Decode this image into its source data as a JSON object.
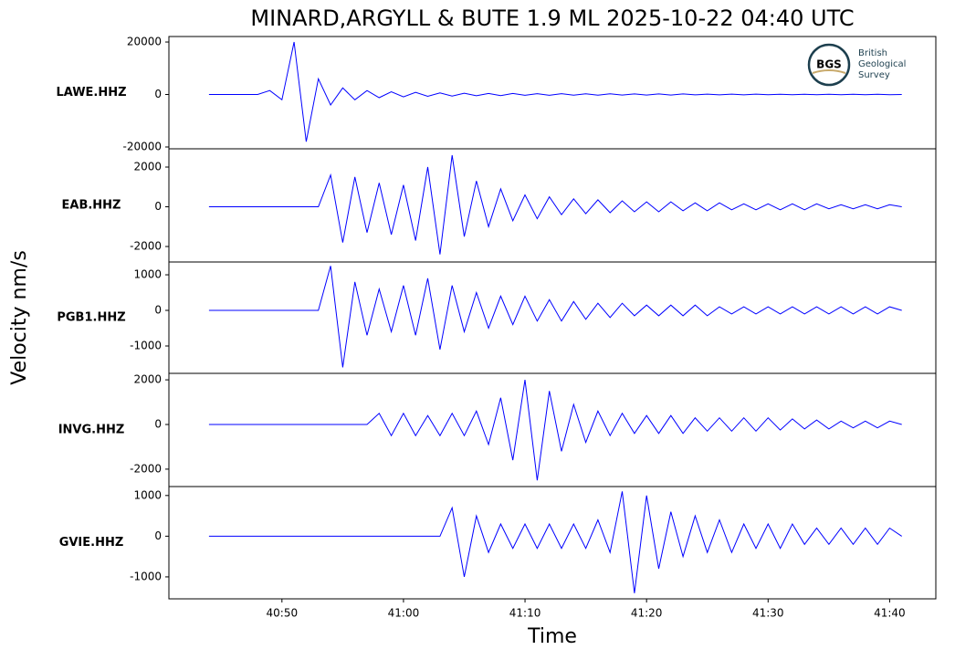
{
  "figure": {
    "title": "MINARD,ARGYLL & BUTE 1.9 ML   2025-10-22 04:40 UTC",
    "xlabel": "Time",
    "ylabel": "Velocity nm/s"
  },
  "logo": {
    "mark": "BGS",
    "lines": [
      "British",
      "Geological",
      "Survey"
    ]
  },
  "chart_data": [
    {
      "type": "line",
      "ylabel": "LAWE.HHZ",
      "color": "#0000ff",
      "xlim": [
        40.7,
        103.8
      ],
      "ylim": [
        -20700,
        22100
      ],
      "yticks": [
        -20000,
        0,
        20000
      ],
      "x": [
        44,
        45,
        46,
        47,
        48,
        49,
        50,
        51,
        52,
        53,
        54,
        55,
        56,
        57,
        58,
        59,
        60,
        61,
        62,
        63,
        64,
        65,
        66,
        67,
        68,
        69,
        70,
        71,
        72,
        73,
        74,
        75,
        76,
        77,
        78,
        79,
        80,
        81,
        82,
        83,
        84,
        85,
        86,
        87,
        88,
        89,
        90,
        91,
        92,
        93,
        94,
        95,
        96,
        97,
        98,
        99,
        100,
        101
      ],
      "values": [
        0,
        0,
        0,
        0,
        0,
        1500,
        -2000,
        20000,
        -18000,
        6000,
        -4000,
        2500,
        -2000,
        1500,
        -1200,
        1000,
        -900,
        800,
        -700,
        600,
        -600,
        500,
        -500,
        400,
        -400,
        400,
        -300,
        300,
        -300,
        300,
        -250,
        250,
        -250,
        250,
        -200,
        200,
        -200,
        200,
        -200,
        200,
        -150,
        150,
        -150,
        150,
        -150,
        150,
        -100,
        100,
        -100,
        100,
        -100,
        100,
        -100,
        100,
        -100,
        100,
        -100,
        0
      ]
    },
    {
      "type": "line",
      "ylabel": "EAB.HHZ",
      "color": "#0000ff",
      "xlim": [
        40.7,
        103.8
      ],
      "ylim": [
        -2780,
        2920
      ],
      "yticks": [
        -2000,
        0,
        2000
      ],
      "x": [
        44,
        45,
        46,
        47,
        48,
        49,
        50,
        51,
        52,
        53,
        54,
        55,
        56,
        57,
        58,
        59,
        60,
        61,
        62,
        63,
        64,
        65,
        66,
        67,
        68,
        69,
        70,
        71,
        72,
        73,
        74,
        75,
        76,
        77,
        78,
        79,
        80,
        81,
        82,
        83,
        84,
        85,
        86,
        87,
        88,
        89,
        90,
        91,
        92,
        93,
        94,
        95,
        96,
        97,
        98,
        99,
        100,
        101
      ],
      "values": [
        0,
        0,
        0,
        0,
        0,
        0,
        0,
        0,
        0,
        0,
        1600,
        -1800,
        1500,
        -1300,
        1200,
        -1400,
        1100,
        -1700,
        2000,
        -2400,
        2600,
        -1500,
        1300,
        -1000,
        900,
        -700,
        600,
        -600,
        500,
        -400,
        400,
        -350,
        350,
        -300,
        300,
        -250,
        250,
        -250,
        250,
        -200,
        200,
        -200,
        200,
        -150,
        150,
        -150,
        150,
        -150,
        150,
        -150,
        150,
        -100,
        100,
        -100,
        100,
        -100,
        100,
        0
      ]
    },
    {
      "type": "line",
      "ylabel": "PGB1.HHZ",
      "color": "#0000ff",
      "xlim": [
        40.7,
        103.8
      ],
      "ylim": [
        -1770,
        1360
      ],
      "yticks": [
        -1000,
        0,
        1000
      ],
      "x": [
        44,
        45,
        46,
        47,
        48,
        49,
        50,
        51,
        52,
        53,
        54,
        55,
        56,
        57,
        58,
        59,
        60,
        61,
        62,
        63,
        64,
        65,
        66,
        67,
        68,
        69,
        70,
        71,
        72,
        73,
        74,
        75,
        76,
        77,
        78,
        79,
        80,
        81,
        82,
        83,
        84,
        85,
        86,
        87,
        88,
        89,
        90,
        91,
        92,
        93,
        94,
        95,
        96,
        97,
        98,
        99,
        100,
        101
      ],
      "values": [
        0,
        0,
        0,
        0,
        0,
        0,
        0,
        0,
        0,
        0,
        1250,
        -1600,
        800,
        -700,
        600,
        -600,
        700,
        -700,
        900,
        -1100,
        700,
        -600,
        500,
        -500,
        400,
        -400,
        400,
        -300,
        300,
        -300,
        250,
        -250,
        200,
        -200,
        200,
        -150,
        150,
        -150,
        150,
        -150,
        150,
        -150,
        100,
        -100,
        100,
        -100,
        100,
        -100,
        100,
        -100,
        100,
        -100,
        100,
        -100,
        100,
        -100,
        100,
        0
      ]
    },
    {
      "type": "line",
      "ylabel": "INVG.HHZ",
      "color": "#0000ff",
      "xlim": [
        40.7,
        103.8
      ],
      "ylim": [
        -2780,
        2290
      ],
      "yticks": [
        -2000,
        0,
        2000
      ],
      "x": [
        44,
        45,
        46,
        47,
        48,
        49,
        50,
        51,
        52,
        53,
        54,
        55,
        56,
        57,
        58,
        59,
        60,
        61,
        62,
        63,
        64,
        65,
        66,
        67,
        68,
        69,
        70,
        71,
        72,
        73,
        74,
        75,
        76,
        77,
        78,
        79,
        80,
        81,
        82,
        83,
        84,
        85,
        86,
        87,
        88,
        89,
        90,
        91,
        92,
        93,
        94,
        95,
        96,
        97,
        98,
        99,
        100,
        101
      ],
      "values": [
        0,
        0,
        0,
        0,
        0,
        0,
        0,
        0,
        0,
        0,
        0,
        0,
        0,
        0,
        500,
        -500,
        500,
        -500,
        400,
        -500,
        500,
        -500,
        600,
        -900,
        1200,
        -1600,
        2000,
        -2500,
        1500,
        -1200,
        900,
        -800,
        600,
        -500,
        500,
        -400,
        400,
        -400,
        400,
        -400,
        300,
        -300,
        300,
        -300,
        300,
        -300,
        300,
        -250,
        250,
        -200,
        200,
        -200,
        150,
        -150,
        150,
        -150,
        150,
        0
      ]
    },
    {
      "type": "line",
      "ylabel": "GVIE.HHZ",
      "color": "#0000ff",
      "xlim": [
        40.7,
        103.8
      ],
      "ylim": [
        -1540,
        1220
      ],
      "yticks": [
        -1000,
        0,
        1000
      ],
      "x": [
        44,
        45,
        46,
        47,
        48,
        49,
        50,
        51,
        52,
        53,
        54,
        55,
        56,
        57,
        58,
        59,
        60,
        61,
        62,
        63,
        64,
        65,
        66,
        67,
        68,
        69,
        70,
        71,
        72,
        73,
        74,
        75,
        76,
        77,
        78,
        79,
        80,
        81,
        82,
        83,
        84,
        85,
        86,
        87,
        88,
        89,
        90,
        91,
        92,
        93,
        94,
        95,
        96,
        97,
        98,
        99,
        100,
        101
      ],
      "values": [
        0,
        0,
        0,
        0,
        0,
        0,
        0,
        0,
        0,
        0,
        0,
        0,
        0,
        0,
        0,
        0,
        0,
        0,
        0,
        0,
        700,
        -1000,
        500,
        -400,
        300,
        -300,
        300,
        -300,
        300,
        -300,
        300,
        -300,
        400,
        -400,
        1100,
        -1400,
        1000,
        -800,
        600,
        -500,
        500,
        -400,
        400,
        -400,
        300,
        -300,
        300,
        -300,
        300,
        -200,
        200,
        -200,
        200,
        -200,
        200,
        -200,
        200,
        0
      ],
      "xticks": [
        {
          "value": 50,
          "label": "40:50"
        },
        {
          "value": 60,
          "label": "41:00"
        },
        {
          "value": 70,
          "label": "41:10"
        },
        {
          "value": 80,
          "label": "41:20"
        },
        {
          "value": 90,
          "label": "41:30"
        },
        {
          "value": 100,
          "label": "41:40"
        }
      ]
    }
  ]
}
